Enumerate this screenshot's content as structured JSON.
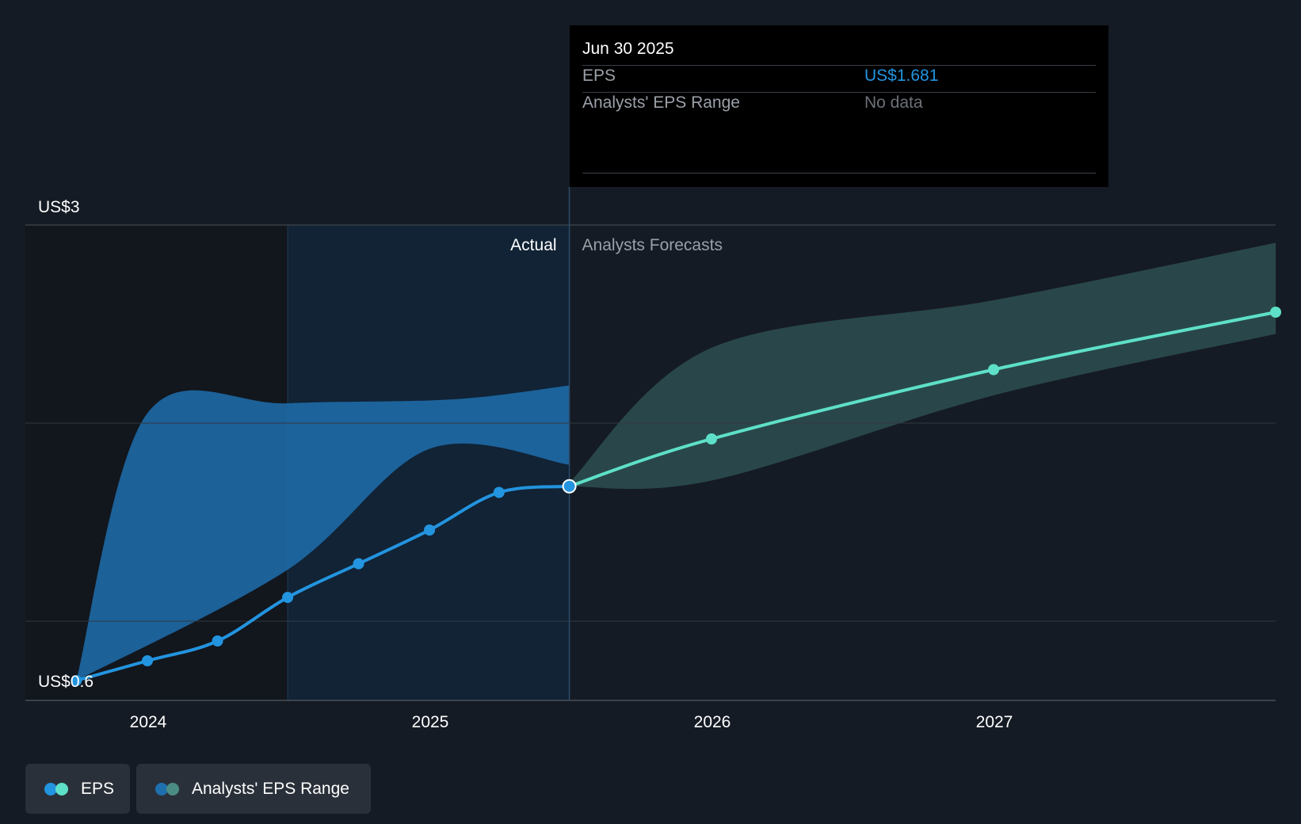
{
  "chart_data": {
    "type": "line",
    "y_axis": {
      "min_label": "US$0.6",
      "max_label": "US$3",
      "min": 0.6,
      "max": 3.0
    },
    "x_ticks": [
      "2024",
      "2025",
      "2026",
      "2027"
    ],
    "divider_date": "2025-06-30",
    "section_labels": {
      "actual": "Actual",
      "forecast": "Analysts Forecasts"
    },
    "series": [
      {
        "name": "EPS",
        "kind": "actual",
        "color": "#2394df",
        "points": [
          {
            "x": "2023-09-30",
            "y": 0.7
          },
          {
            "x": "2023-12-31",
            "y": 0.8
          },
          {
            "x": "2024-03-31",
            "y": 0.9
          },
          {
            "x": "2024-06-30",
            "y": 1.12
          },
          {
            "x": "2024-09-30",
            "y": 1.29
          },
          {
            "x": "2024-12-31",
            "y": 1.46
          },
          {
            "x": "2025-03-31",
            "y": 1.65
          },
          {
            "x": "2025-06-30",
            "y": 1.681
          }
        ]
      },
      {
        "name": "EPS",
        "kind": "forecast",
        "color": "#5ee0c8",
        "points": [
          {
            "x": "2025-06-30",
            "y": 1.681
          },
          {
            "x": "2025-12-31",
            "y": 1.92
          },
          {
            "x": "2026-12-31",
            "y": 2.27
          },
          {
            "x": "2027-12-31",
            "y": 2.56
          }
        ]
      }
    ],
    "ranges": [
      {
        "name": "Analysts' EPS Range",
        "kind": "actual",
        "color": "#1f6fae",
        "upper": [
          {
            "x": "2023-09-30",
            "y": 0.7
          },
          {
            "x": "2023-12-31",
            "y": 2.05
          },
          {
            "x": "2024-06-30",
            "y": 2.1
          },
          {
            "x": "2025-01-31",
            "y": 2.12
          },
          {
            "x": "2025-06-30",
            "y": 2.19
          }
        ],
        "lower": [
          {
            "x": "2023-09-30",
            "y": 0.7
          },
          {
            "x": "2024-06-30",
            "y": 1.26
          },
          {
            "x": "2024-12-31",
            "y": 1.87
          },
          {
            "x": "2025-06-30",
            "y": 1.79
          }
        ]
      },
      {
        "name": "Analysts' EPS Range",
        "kind": "forecast",
        "color": "#2e5354",
        "upper": [
          {
            "x": "2025-06-30",
            "y": 1.7
          },
          {
            "x": "2025-12-31",
            "y": 2.38
          },
          {
            "x": "2026-12-31",
            "y": 2.62
          },
          {
            "x": "2027-12-31",
            "y": 2.91
          }
        ],
        "lower": [
          {
            "x": "2025-06-30",
            "y": 1.68
          },
          {
            "x": "2025-12-31",
            "y": 1.71
          },
          {
            "x": "2026-12-31",
            "y": 2.14
          },
          {
            "x": "2027-12-31",
            "y": 2.45
          }
        ]
      }
    ],
    "grid": true
  },
  "tooltip": {
    "date": "Jun 30 2025",
    "rows": [
      {
        "label": "EPS",
        "value": "US$1.681",
        "value_color": "#2394df"
      },
      {
        "label": "Analysts' EPS Range",
        "value": "No data",
        "value_color": "#6b7078"
      }
    ]
  },
  "legend": [
    {
      "label": "EPS",
      "colors": [
        "#2394df",
        "#5ee0c8"
      ]
    },
    {
      "label": "Analysts' EPS Range",
      "colors": [
        "#1f6fae",
        "#4b8d85"
      ]
    }
  ]
}
